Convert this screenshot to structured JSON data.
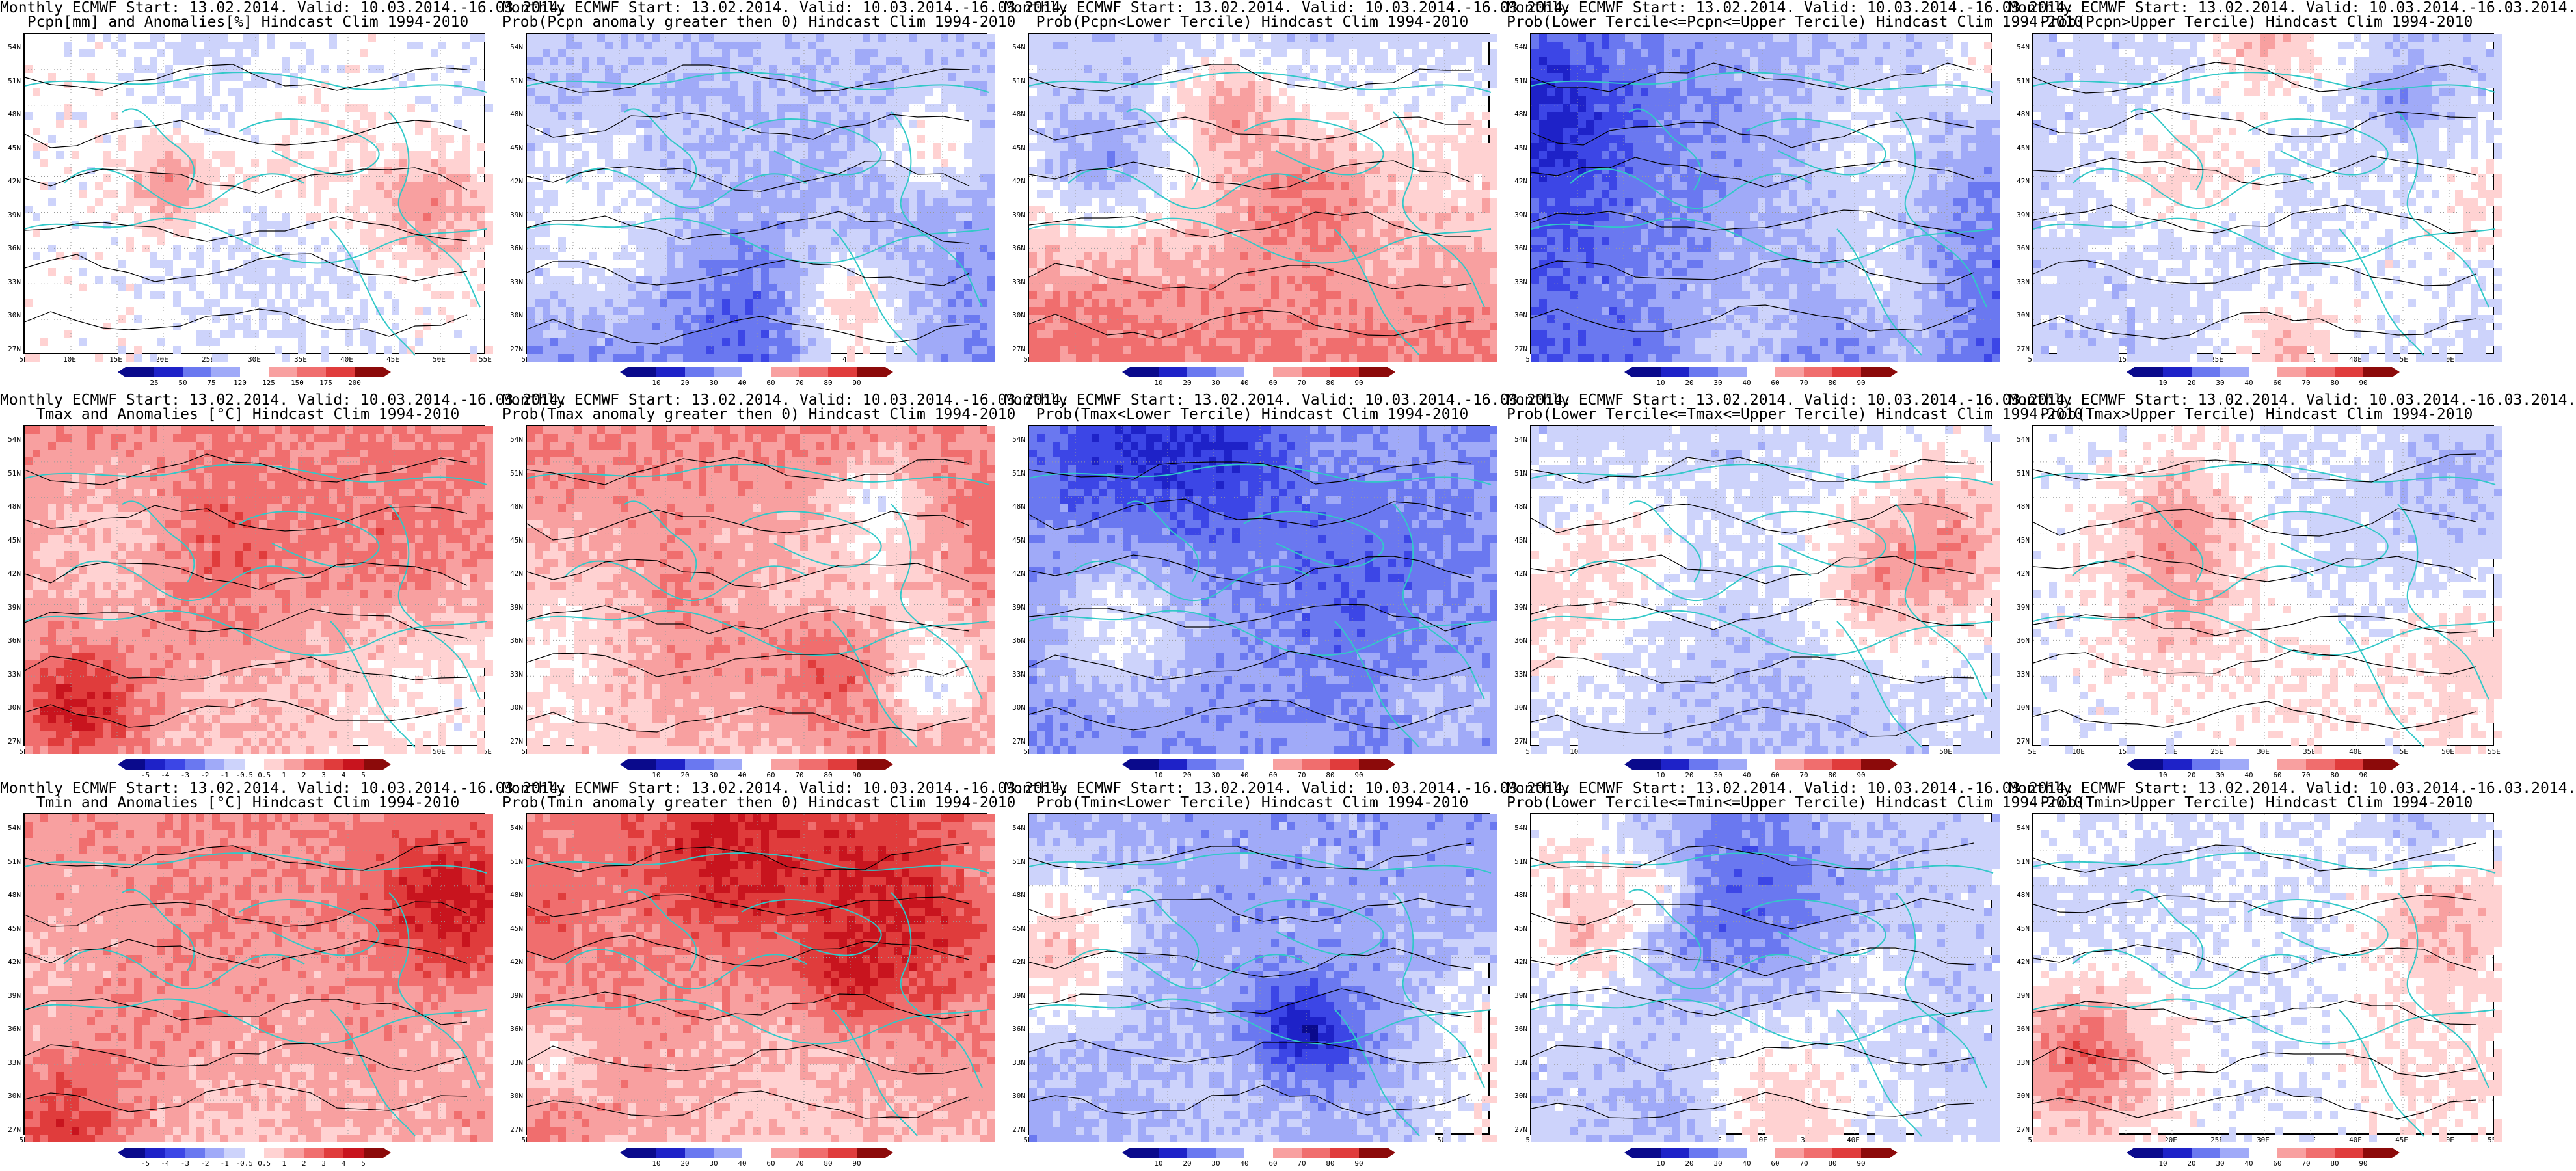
{
  "layout": {
    "cols": 5,
    "rows": 3
  },
  "y_ticks": [
    "54N",
    "51N",
    "48N",
    "45N",
    "42N",
    "39N",
    "36N",
    "33N",
    "30N",
    "27N"
  ],
  "x_ticks": [
    "5E",
    "10E",
    "15E",
    "20E",
    "25E",
    "30E",
    "35E",
    "40E",
    "45E",
    "50E",
    "55E"
  ],
  "colors": {
    "blues": [
      "#0a0a8c",
      "#1e22c8",
      "#3c46e6",
      "#6a78f0",
      "#a0aaf8",
      "#cdd3fb"
    ],
    "reds": [
      "#ffd2d2",
      "#f8a0a0",
      "#f06e6e",
      "#e03c3c",
      "#c8141e",
      "#8c0a0a"
    ],
    "coast": "#32c8c8",
    "contour": "#000000"
  },
  "panels": [
    {
      "title1": "Monthly ECMWF Start: 13.02.2014. Valid: 10.03.2014.-16.03.2014.",
      "title2": "Pcpn[mm] and Anomalies[%] Hindcast Clim 1994-2010",
      "scale": "anomaly",
      "cbar": [
        "25",
        "50",
        "75",
        "120",
        "125",
        "150",
        "175",
        "200"
      ]
    },
    {
      "title1": "Monthly ECMWF Start: 13.02.2014. Valid: 10.03.2014.-16.03.2014.",
      "title2": "Prob(Pcpn anomaly greater then 0) Hindcast Clim 1994-2010",
      "scale": "prob",
      "cbar": [
        "10",
        "20",
        "30",
        "40",
        "60",
        "70",
        "80",
        "90"
      ]
    },
    {
      "title1": "Monthly ECMWF Start: 13.02.2014. Valid: 10.03.2014.-16.03.2014.",
      "title2": "Prob(Pcpn<Lower Tercile) Hindcast Clim 1994-2010",
      "scale": "prob",
      "cbar": [
        "10",
        "20",
        "30",
        "40",
        "60",
        "70",
        "80",
        "90"
      ]
    },
    {
      "title1": "Monthly ECMWF Start: 13.02.2014. Valid: 10.03.2014.-16.03.2014.",
      "title2": "Prob(Lower Tercile<=Pcpn<=Upper Tercile) Hindcast Clim 1994-2010",
      "scale": "prob",
      "cbar": [
        "10",
        "20",
        "30",
        "40",
        "60",
        "70",
        "80",
        "90"
      ]
    },
    {
      "title1": "Monthly ECMWF Start: 13.02.2014. Valid: 10.03.2014.-16.03.2014.",
      "title2": "Prob(Pcpn>Upper Tercile) Hindcast Clim 1994-2010",
      "scale": "prob",
      "cbar": [
        "10",
        "20",
        "30",
        "40",
        "60",
        "70",
        "80",
        "90"
      ]
    },
    {
      "title1": "Monthly ECMWF Start: 13.02.2014. Valid: 10.03.2014.-16.03.2014.",
      "title2": "Tmax and Anomalies [°C] Hindcast Clim 1994-2010",
      "scale": "anomaly",
      "cbar": [
        "-5",
        "-4",
        "-3",
        "-2",
        "-1",
        "-0.5",
        "0.5",
        "1",
        "2",
        "3",
        "4",
        "5"
      ]
    },
    {
      "title1": "Monthly ECMWF Start: 13.02.2014. Valid: 10.03.2014.-16.03.2014.",
      "title2": "Prob(Tmax anomaly greater then 0) Hindcast Clim 1994-2010",
      "scale": "prob",
      "cbar": [
        "10",
        "20",
        "30",
        "40",
        "60",
        "70",
        "80",
        "90"
      ]
    },
    {
      "title1": "Monthly ECMWF Start: 13.02.2014. Valid: 10.03.2014.-16.03.2014.",
      "title2": "Prob(Tmax<Lower Tercile) Hindcast Clim 1994-2010",
      "scale": "prob",
      "cbar": [
        "10",
        "20",
        "30",
        "40",
        "60",
        "70",
        "80",
        "90"
      ]
    },
    {
      "title1": "Monthly ECMWF Start: 13.02.2014. Valid: 10.03.2014.-16.03.2014.",
      "title2": "Prob(Lower Tercile<=Tmax<=Upper Tercile) Hindcast Clim 1994-2010",
      "scale": "prob",
      "cbar": [
        "10",
        "20",
        "30",
        "40",
        "60",
        "70",
        "80",
        "90"
      ]
    },
    {
      "title1": "Monthly ECMWF Start: 13.02.2014. Valid: 10.03.2014.-16.03.2014.",
      "title2": "Prob(Tmax>Upper Tercile) Hindcast Clim 1994-2010",
      "scale": "prob",
      "cbar": [
        "10",
        "20",
        "30",
        "40",
        "60",
        "70",
        "80",
        "90"
      ]
    },
    {
      "title1": "Monthly ECMWF Start: 13.02.2014. Valid: 10.03.2014.-16.03.2014.",
      "title2": "Tmin and Anomalies [°C] Hindcast Clim 1994-2010",
      "scale": "anomaly",
      "cbar": [
        "-5",
        "-4",
        "-3",
        "-2",
        "-1",
        "-0.5",
        "0.5",
        "1",
        "2",
        "3",
        "4",
        "5"
      ]
    },
    {
      "title1": "Monthly ECMWF Start: 13.02.2014. Valid: 10.03.2014.-16.03.2014.",
      "title2": "Prob(Tmin anomaly greater then 0) Hindcast Clim 1994-2010",
      "scale": "prob",
      "cbar": [
        "10",
        "20",
        "30",
        "40",
        "60",
        "70",
        "80",
        "90"
      ]
    },
    {
      "title1": "Monthly ECMWF Start: 13.02.2014. Valid: 10.03.2014.-16.03.2014.",
      "title2": "Prob(Tmin<Lower Tercile) Hindcast Clim 1994-2010",
      "scale": "prob",
      "cbar": [
        "10",
        "20",
        "30",
        "40",
        "60",
        "70",
        "80",
        "90"
      ]
    },
    {
      "title1": "Monthly ECMWF Start: 13.02.2014. Valid: 10.03.2014.-16.03.2014.",
      "title2": "Prob(Lower Tercile<=Tmin<=Upper Tercile) Hindcast Clim 1994-2010",
      "scale": "prob",
      "cbar": [
        "10",
        "20",
        "30",
        "40",
        "60",
        "70",
        "80",
        "90"
      ]
    },
    {
      "title1": "Monthly ECMWF Start: 13.02.2014. Valid: 10.03.2014.-16.03.2014.",
      "title2": "Prob(Tmin>Upper Tercile) Hindcast Clim 1994-2010",
      "scale": "prob",
      "cbar": [
        "10",
        "20",
        "30",
        "40",
        "60",
        "70",
        "80",
        "90"
      ]
    }
  ]
}
